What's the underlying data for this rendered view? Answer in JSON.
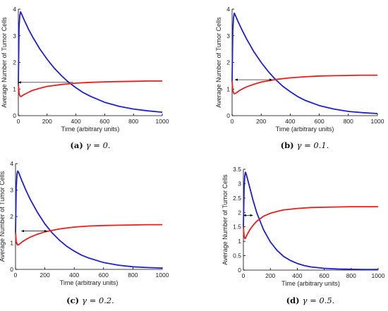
{
  "chart_data": [
    {
      "type": "line",
      "panel_label": "(a)",
      "caption": "γ = 0.",
      "xlabel": "Time (arbitrary units)",
      "ylabel": "Average Number of Tumor Cells",
      "xlim": [
        0,
        1000
      ],
      "ylim": [
        0,
        4
      ],
      "xticks": [
        0,
        200,
        400,
        600,
        800,
        1000
      ],
      "yticks": [
        0,
        1,
        2,
        3,
        4
      ],
      "series": [
        {
          "color": "#1f1fd6",
          "x": [
            0,
            5,
            10,
            15,
            20,
            40,
            70,
            100,
            150,
            200,
            250,
            300,
            350,
            400,
            450,
            500,
            600,
            700,
            800,
            900,
            1000
          ],
          "y": [
            1.2,
            3.3,
            3.75,
            3.9,
            3.85,
            3.6,
            3.25,
            2.95,
            2.5,
            2.12,
            1.78,
            1.5,
            1.25,
            1.05,
            0.87,
            0.73,
            0.5,
            0.35,
            0.25,
            0.18,
            0.13
          ]
        },
        {
          "color": "#ee1c1c",
          "x": [
            0,
            5,
            10,
            15,
            20,
            30,
            50,
            80,
            100,
            150,
            200,
            300,
            400,
            500,
            600,
            700,
            800,
            900,
            1000
          ],
          "y": [
            1.2,
            0.85,
            0.75,
            0.72,
            0.72,
            0.76,
            0.82,
            0.9,
            0.95,
            1.03,
            1.1,
            1.17,
            1.22,
            1.25,
            1.27,
            1.28,
            1.29,
            1.3,
            1.3
          ]
        }
      ],
      "annotations": [
        {
          "type": "arrow",
          "from": [
            380,
            1.25
          ],
          "to": [
            0,
            1.25
          ]
        }
      ]
    },
    {
      "type": "line",
      "panel_label": "(b)",
      "caption": "γ = 0.1.",
      "xlabel": "Time (arbitrary units)",
      "ylabel": "Average Number of Tumor Cells",
      "xlim": [
        0,
        1000
      ],
      "ylim": [
        0,
        4
      ],
      "xticks": [
        0,
        200,
        400,
        600,
        800,
        1000
      ],
      "yticks": [
        0,
        1,
        2,
        3,
        4
      ],
      "series": [
        {
          "color": "#1f1fd6",
          "x": [
            0,
            5,
            10,
            15,
            20,
            40,
            70,
            100,
            150,
            200,
            250,
            300,
            350,
            400,
            450,
            500,
            600,
            700,
            800,
            900,
            1000
          ],
          "y": [
            1.3,
            3.2,
            3.7,
            3.85,
            3.8,
            3.55,
            3.2,
            2.88,
            2.4,
            2.0,
            1.65,
            1.35,
            1.1,
            0.9,
            0.72,
            0.58,
            0.38,
            0.25,
            0.16,
            0.11,
            0.08
          ]
        },
        {
          "color": "#ee1c1c",
          "x": [
            0,
            5,
            10,
            15,
            20,
            30,
            50,
            80,
            100,
            150,
            200,
            300,
            400,
            500,
            600,
            700,
            800,
            900,
            1000
          ],
          "y": [
            1.3,
            0.95,
            0.85,
            0.82,
            0.83,
            0.86,
            0.94,
            1.03,
            1.08,
            1.18,
            1.26,
            1.36,
            1.42,
            1.46,
            1.49,
            1.5,
            1.51,
            1.52,
            1.52
          ]
        }
      ],
      "annotations": [
        {
          "type": "double-arrow",
          "from": [
            20,
            1.35
          ],
          "to": [
            275,
            1.35
          ]
        }
      ]
    },
    {
      "type": "line",
      "panel_label": "(c)",
      "caption": "γ = 0.2.",
      "xlabel": "Time (arbitrary units)",
      "ylabel": "Average Number of Tumor Cells",
      "xlim": [
        0,
        1000
      ],
      "ylim": [
        0,
        4
      ],
      "xticks": [
        0,
        200,
        400,
        600,
        800,
        1000
      ],
      "yticks": [
        0,
        1,
        2,
        3,
        4
      ],
      "series": [
        {
          "color": "#1f1fd6",
          "x": [
            0,
            5,
            10,
            15,
            20,
            40,
            70,
            100,
            150,
            200,
            250,
            300,
            350,
            400,
            450,
            500,
            600,
            700,
            800,
            900,
            1000
          ],
          "y": [
            1.4,
            3.1,
            3.6,
            3.72,
            3.68,
            3.4,
            3.0,
            2.65,
            2.15,
            1.72,
            1.38,
            1.1,
            0.87,
            0.69,
            0.54,
            0.43,
            0.26,
            0.16,
            0.1,
            0.07,
            0.05
          ]
        },
        {
          "color": "#ee1c1c",
          "x": [
            0,
            5,
            10,
            15,
            20,
            30,
            50,
            80,
            100,
            150,
            200,
            300,
            400,
            500,
            600,
            700,
            800,
            900,
            1000
          ],
          "y": [
            1.4,
            1.05,
            0.95,
            0.92,
            0.93,
            0.97,
            1.06,
            1.16,
            1.22,
            1.33,
            1.42,
            1.53,
            1.6,
            1.64,
            1.66,
            1.67,
            1.68,
            1.69,
            1.69
          ]
        }
      ],
      "annotations": [
        {
          "type": "double-arrow",
          "from": [
            40,
            1.45
          ],
          "to": [
            215,
            1.45
          ]
        }
      ]
    },
    {
      "type": "line",
      "panel_label": "(d)",
      "caption": "γ = 0.5.",
      "xlabel": "Time (arbitrary units)",
      "ylabel": "Average Number of Tumor Cells",
      "xlim": [
        0,
        1000
      ],
      "ylim": [
        0,
        3.5
      ],
      "xticks": [
        0,
        200,
        400,
        600,
        800,
        1000
      ],
      "yticks": [
        0,
        0.5,
        1,
        1.5,
        2,
        2.5,
        3,
        3.5
      ],
      "series": [
        {
          "color": "#1f1fd6",
          "x": [
            0,
            5,
            10,
            15,
            20,
            40,
            70,
            100,
            150,
            200,
            250,
            300,
            350,
            400,
            450,
            500,
            600,
            700,
            800,
            900,
            1000
          ],
          "y": [
            1.5,
            2.8,
            3.25,
            3.4,
            3.35,
            3.0,
            2.45,
            1.98,
            1.4,
            0.98,
            0.68,
            0.47,
            0.33,
            0.23,
            0.16,
            0.11,
            0.06,
            0.04,
            0.03,
            0.02,
            0.02
          ]
        },
        {
          "color": "#ee1c1c",
          "x": [
            0,
            5,
            10,
            15,
            20,
            30,
            50,
            80,
            100,
            150,
            200,
            250,
            300,
            400,
            500,
            600,
            700,
            800,
            900,
            1000
          ],
          "y": [
            1.5,
            1.2,
            1.1,
            1.1,
            1.15,
            1.25,
            1.42,
            1.6,
            1.7,
            1.87,
            1.97,
            2.04,
            2.09,
            2.14,
            2.17,
            2.18,
            2.19,
            2.2,
            2.2,
            2.2
          ]
        }
      ],
      "annotations": [
        {
          "type": "double-arrow",
          "from": [
            0,
            1.9
          ],
          "to": [
            70,
            1.9
          ]
        }
      ]
    }
  ]
}
